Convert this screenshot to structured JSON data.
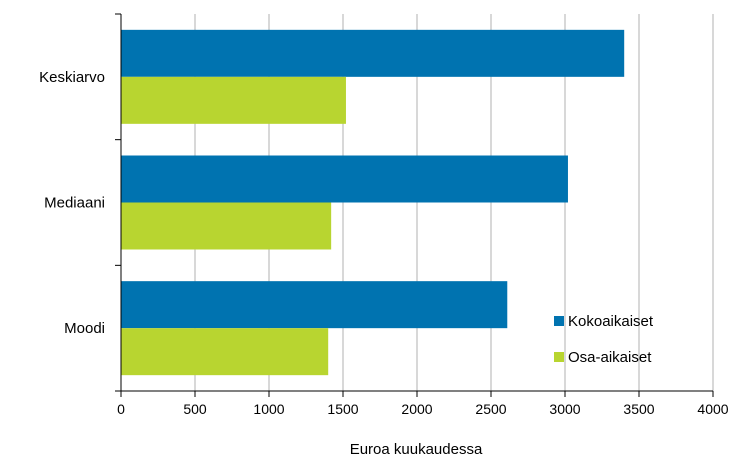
{
  "chart_data": {
    "type": "bar",
    "orientation": "horizontal",
    "categories": [
      "Keskiarvo",
      "Mediaani",
      "Moodi"
    ],
    "series": [
      {
        "name": "Kokoaikaiset",
        "values": [
          3400,
          3020,
          2610
        ],
        "color": "#0073b0"
      },
      {
        "name": "Osa-aikaiset",
        "values": [
          1520,
          1420,
          1400
        ],
        "color": "#b8d530"
      }
    ],
    "xlabel": "Euroa kuukaudessa",
    "ylabel": "",
    "xlim": [
      0,
      4000
    ],
    "xticks": [
      "0",
      "500",
      "1000",
      "1500",
      "2000",
      "2500",
      "3000",
      "3500",
      "4000"
    ],
    "grid": "vertical",
    "legend_position": "bottom-right"
  }
}
